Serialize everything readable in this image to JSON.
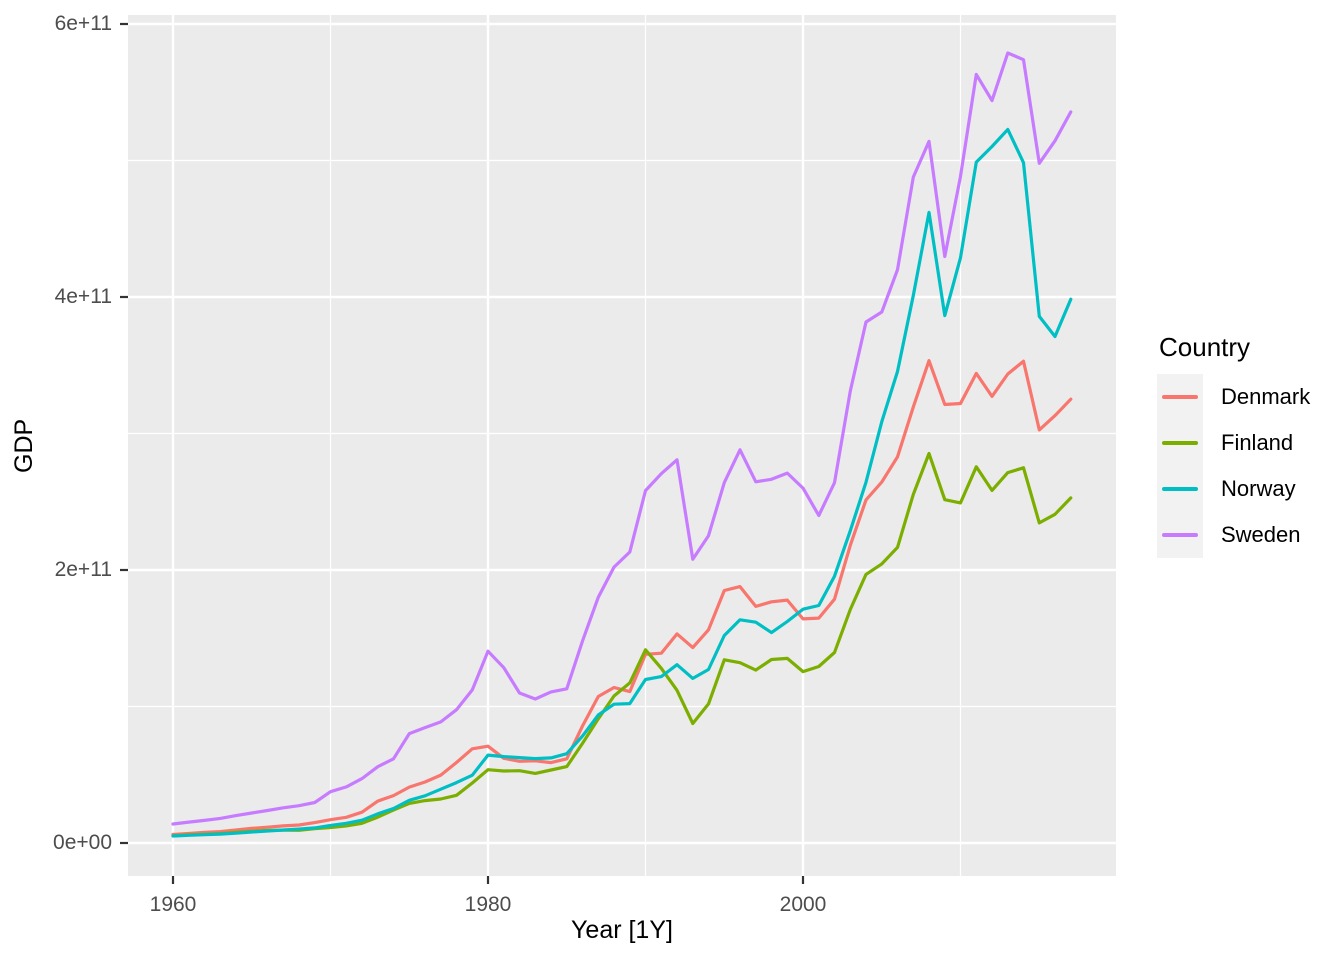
{
  "colors": {
    "panel_background": "#EBEBEB",
    "gridline": "#FFFFFF",
    "tick_mark": "#333333",
    "tick_label": "#4D4D4D",
    "legend_key_background": "#F2F2F2"
  },
  "chart_data": {
    "type": "line",
    "title": "",
    "xlabel": "Year [1Y]",
    "ylabel": "GDP",
    "legend_position": "right",
    "grid": "on",
    "value_scale": 1000000000,
    "x_axis": {
      "range": [
        1957.15,
        2019.85
      ],
      "ticks_major": [
        1960,
        1980,
        2000
      ],
      "ticks_minor": [
        1970,
        1990,
        2010
      ],
      "tick_labels": [
        "1960",
        "1980",
        "2000"
      ]
    },
    "y_axis": {
      "range_billions": [
        -24.2,
        606.6
      ],
      "ticks_major_billions": [
        0,
        200,
        400,
        600
      ],
      "ticks_minor_billions": [
        100,
        300,
        500
      ],
      "tick_labels": [
        "0e+00",
        "2e+11",
        "4e+11",
        "6e+11"
      ]
    },
    "x": [
      1960,
      1961,
      1962,
      1963,
      1964,
      1965,
      1966,
      1967,
      1968,
      1969,
      1970,
      1971,
      1972,
      1973,
      1974,
      1975,
      1976,
      1977,
      1978,
      1979,
      1980,
      1981,
      1982,
      1983,
      1984,
      1985,
      1986,
      1987,
      1988,
      1989,
      1990,
      1991,
      1992,
      1993,
      1994,
      1995,
      1996,
      1997,
      1998,
      1999,
      2000,
      2001,
      2002,
      2003,
      2004,
      2005,
      2006,
      2007,
      2008,
      2009,
      2010,
      2011,
      2012,
      2013,
      2014,
      2015,
      2016,
      2017
    ],
    "series": [
      {
        "name": "Denmark",
        "color": "#F8766D",
        "values_billions": [
          6.25,
          6.93,
          7.81,
          8.33,
          9.51,
          10.68,
          11.54,
          12.54,
          13.19,
          14.92,
          17.07,
          18.84,
          22.6,
          30.73,
          34.73,
          40.96,
          44.7,
          49.73,
          58.98,
          68.98,
          70.88,
          62.04,
          59.85,
          60.19,
          58.87,
          61.7,
          85.75,
          107.29,
          113.94,
          110.88,
          138.25,
          139.07,
          153.16,
          143.18,
          156.22,
          185.01,
          187.82,
          173.36,
          176.67,
          177.96,
          164.16,
          164.79,
          178.64,
          218.1,
          251.37,
          264.47,
          282.88,
          319.42,
          353.36,
          321.24,
          321.99,
          344.0,
          327.15,
          343.58,
          352.99,
          302.67,
          313.12,
          325.1
        ]
      },
      {
        "name": "Finland",
        "color": "#7CAE00",
        "values_billions": [
          5.22,
          5.92,
          6.34,
          6.89,
          7.77,
          8.59,
          9.22,
          9.41,
          9.33,
          10.47,
          11.37,
          12.55,
          14.4,
          18.99,
          24.1,
          29.03,
          31.06,
          32.24,
          34.95,
          43.96,
          53.71,
          52.76,
          52.99,
          50.97,
          53.48,
          55.99,
          72.99,
          91.02,
          107.68,
          117.29,
          141.52,
          127.96,
          111.89,
          87.56,
          101.94,
          134.2,
          132.07,
          126.66,
          134.42,
          135.22,
          125.54,
          129.27,
          139.58,
          171.07,
          196.77,
          204.44,
          216.55,
          255.38,
          285.38,
          251.5,
          249.18,
          275.6,
          258.29,
          271.36,
          274.86,
          234.53,
          240.77,
          252.82
        ]
      },
      {
        "name": "Norway",
        "color": "#00BFC4",
        "values_billions": [
          5.16,
          5.63,
          6.07,
          6.51,
          7.16,
          8.07,
          8.76,
          9.55,
          10.2,
          11.05,
          12.81,
          14.44,
          16.71,
          21.36,
          25.3,
          31.27,
          34.61,
          39.44,
          44.26,
          49.65,
          64.42,
          63.32,
          62.55,
          61.84,
          62.35,
          65.45,
          78.33,
          93.8,
          101.66,
          102.1,
          119.79,
          121.93,
          130.65,
          120.62,
          127.13,
          152.03,
          163.51,
          161.77,
          154.15,
          162.28,
          171.31,
          174.01,
          195.44,
          228.8,
          264.32,
          308.72,
          345.42,
          401.08,
          461.95,
          386.38,
          428.76,
          498.83,
          510.23,
          522.75,
          498.4,
          385.8,
          371.07,
          398.39
        ]
      },
      {
        "name": "Sweden",
        "color": "#C77CFF",
        "values_billions": [
          13.95,
          15.32,
          16.58,
          17.99,
          20.1,
          21.99,
          23.83,
          25.8,
          27.33,
          29.65,
          37.56,
          41.1,
          47.21,
          55.91,
          61.71,
          80.11,
          84.51,
          88.73,
          97.66,
          112.19,
          140.53,
          128.45,
          109.89,
          105.47,
          110.67,
          112.97,
          147.95,
          180.1,
          202.14,
          213.17,
          258.16,
          270.52,
          280.72,
          207.84,
          225.1,
          264.05,
          288.06,
          264.62,
          266.44,
          270.97,
          259.98,
          239.9,
          263.93,
          331.11,
          381.7,
          389.04,
          420.03,
          487.82,
          513.97,
          429.66,
          488.38,
          563.11,
          543.88,
          578.74,
          573.82,
          497.92,
          514.46,
          535.61
        ]
      }
    ]
  },
  "legend": {
    "title": "Country",
    "items": [
      {
        "label": "Denmark",
        "color": "#F8766D"
      },
      {
        "label": "Finland",
        "color": "#7CAE00"
      },
      {
        "label": "Norway",
        "color": "#00BFC4"
      },
      {
        "label": "Sweden",
        "color": "#C77CFF"
      }
    ]
  }
}
